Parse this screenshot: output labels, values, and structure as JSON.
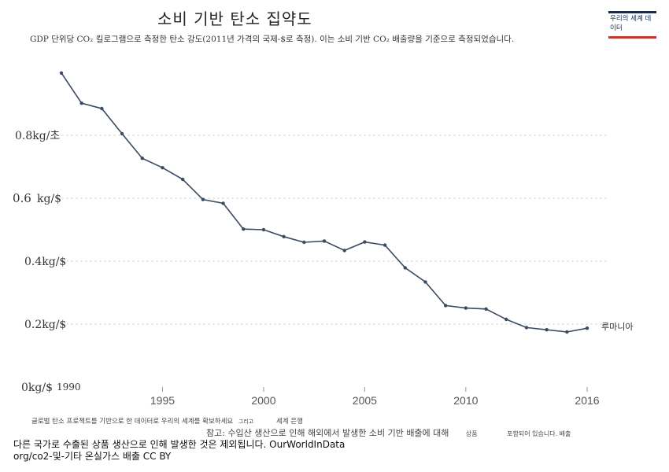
{
  "header": {
    "title": "소비 기반 탄소 집약도",
    "subtitle": "GDP 단위당 CO₂ 킬로그램으로 측정한 탄소 강도(2011년 가격의 국제-$로 측정). 이는 소비 기반 CO₂ 배출량을 기준으로 측정되었습니다.",
    "logo_text": "우리의 세계 데이터"
  },
  "chart_data": {
    "type": "line",
    "title": "소비 기반 탄소 집약도",
    "x": [
      1990,
      1991,
      1992,
      1993,
      1994,
      1995,
      1996,
      1997,
      1998,
      1999,
      2000,
      2001,
      2002,
      2003,
      2004,
      2005,
      2006,
      2007,
      2008,
      2009,
      2010,
      2011,
      2012,
      2013,
      2014,
      2015,
      2016
    ],
    "series": [
      {
        "name": "루마니아",
        "values": [
          0.998,
          0.902,
          0.885,
          0.805,
          0.727,
          0.697,
          0.66,
          0.596,
          0.584,
          0.502,
          0.5,
          0.478,
          0.46,
          0.464,
          0.434,
          0.461,
          0.451,
          0.379,
          0.334,
          0.259,
          0.251,
          0.248,
          0.215,
          0.189,
          0.182,
          0.175,
          0.187
        ],
        "color": "#3b4a63"
      }
    ],
    "ylim": [
      0,
      1.0
    ],
    "y_ticks": [
      0,
      0.2,
      0.4,
      0.6,
      0.8
    ],
    "y_tick_labels": [
      "0kg/$",
      "0.2kg/$",
      "0.4kg/$",
      "kg/$",
      "0.8kg/초"
    ],
    "y_tick_secondary": [
      "",
      "",
      "",
      "0.6",
      ""
    ],
    "x_ticks": [
      1995,
      2000,
      2005,
      2010,
      2016
    ],
    "x_tick_labels": [
      "1995",
      "2000",
      "2005",
      "2010",
      "2016"
    ],
    "x_start_label": "1990",
    "grid": true
  },
  "footer": {
    "line1": "글로벌 탄소 프로젝트를 기반으로 한 데이터로 우리의 세계를 확보하세요",
    "line1_b": "그리고",
    "line1_c": "세계 은행",
    "line2": "참고: 수입산 생산으로 인해 해외에서 발생한 소비 기반 배출에 대해",
    "line2_b": "상품",
    "line2_c": "포함되어 있습니다. 배출",
    "line3": "다른 국가로 수출된 상품 생산으로 인해 발생한 것은 제외됩니다. OurWorldInData",
    "line4": "org/co2-및-기타 온실가스 배출 CC BY"
  }
}
